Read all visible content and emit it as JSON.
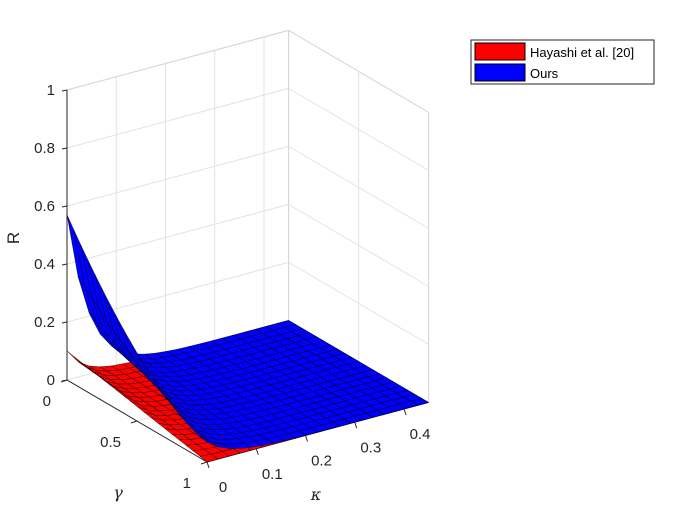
{
  "chart_data": {
    "type": "surface",
    "title": "",
    "xlabel": "κ",
    "ylabel": "γ",
    "zlabel": "R",
    "xlim": [
      0,
      0.45
    ],
    "ylim": [
      0,
      1
    ],
    "zlim": [
      0,
      1
    ],
    "x_ticks": [
      "0",
      "0.1",
      "0.2",
      "0.3",
      "0.4"
    ],
    "y_ticks": [
      "0",
      "0.5",
      "1"
    ],
    "z_ticks": [
      "0",
      "0.2",
      "0.4",
      "0.6",
      "0.8",
      "1"
    ],
    "grid": true,
    "legend_position": "top-right",
    "surface_grid_size": 21,
    "series": [
      {
        "name": "Hayashi et al. [20]",
        "color": "#ff0000",
        "value_at_origin": 0.1,
        "model": "R ≈ 0.1·exp(−κ/0.035)·(1 − γ), ≈ 0 elsewhere"
      },
      {
        "name": "Ours",
        "color": "#0000ff",
        "value_at_origin": 0.57,
        "value_at_far_corner": 0.0,
        "model": "R ≈ 0.5·exp(−κ/0.045)·(1 − γ)^1.6 + 0.07·exp(−κ/0.045), ≈ 0 elsewhere"
      }
    ]
  }
}
